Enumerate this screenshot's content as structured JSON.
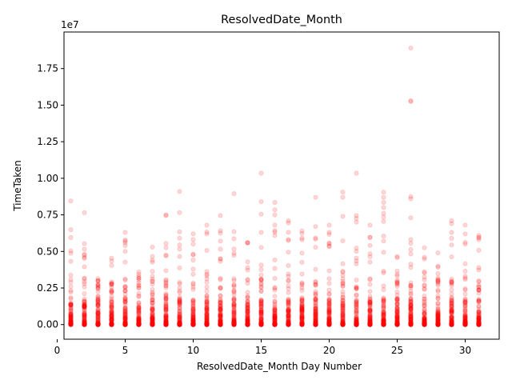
{
  "chart_data": {
    "type": "scatter",
    "title": "ResolvedDate_Month",
    "xlabel": "ResolvedDate_Month Day Number",
    "ylabel": "TimeTaken",
    "y_offset_text": "1e7",
    "xlim": [
      0.5,
      32.5
    ],
    "ylim": [
      -1000000,
      20000000
    ],
    "xticks": [
      0,
      5,
      10,
      15,
      20,
      25,
      30
    ],
    "xtick_labels": [
      "0",
      "5",
      "10",
      "15",
      "20",
      "25",
      "30"
    ],
    "yticks": [
      0,
      2500000,
      5000000,
      7500000,
      10000000,
      12500000,
      15000000,
      17500000
    ],
    "ytick_labels": [
      "0.00",
      "0.25",
      "0.50",
      "0.75",
      "1.00",
      "1.25",
      "1.50",
      "1.75"
    ],
    "marker_color": "#ff0000",
    "marker_alpha": 0.15,
    "grid": false,
    "legend": "none",
    "day_max_values": {
      "1": 8450000,
      "2": 7650000,
      "3": 3000000,
      "4": 4650000,
      "5": 6300000,
      "6": 3650000,
      "7": 5300000,
      "8": 7500000,
      "9": 9100000,
      "10": 6200000,
      "11": 6800000,
      "12": 7450000,
      "13": 8950000,
      "14": 5600000,
      "15": 10350000,
      "16": 8350000,
      "17": 7100000,
      "18": 6400000,
      "19": 8700000,
      "20": 6800000,
      "21": 9050000,
      "22": 10350000,
      "23": 6800000,
      "24": 9050000,
      "25": 4650000,
      "26": 18900000,
      "27": 5250000,
      "28": 4900000,
      "29": 7100000,
      "30": 6800000,
      "31": 6100000
    },
    "points": [
      {
        "x": 1,
        "y": 8450000
      },
      {
        "x": 1,
        "y": 5950000
      },
      {
        "x": 2,
        "y": 7650000
      },
      {
        "x": 2,
        "y": 4800000
      },
      {
        "x": 5,
        "y": 6300000
      },
      {
        "x": 5,
        "y": 5400000
      },
      {
        "x": 7,
        "y": 5300000
      },
      {
        "x": 8,
        "y": 7500000
      },
      {
        "x": 8,
        "y": 7450000
      },
      {
        "x": 8,
        "y": 5250000
      },
      {
        "x": 9,
        "y": 9100000
      },
      {
        "x": 9,
        "y": 7650000
      },
      {
        "x": 9,
        "y": 5450000
      },
      {
        "x": 10,
        "y": 6200000
      },
      {
        "x": 10,
        "y": 5500000
      },
      {
        "x": 11,
        "y": 6800000
      },
      {
        "x": 11,
        "y": 6200000
      },
      {
        "x": 12,
        "y": 7450000
      },
      {
        "x": 12,
        "y": 6250000
      },
      {
        "x": 13,
        "y": 8950000
      },
      {
        "x": 13,
        "y": 6350000
      },
      {
        "x": 14,
        "y": 5600000
      },
      {
        "x": 15,
        "y": 10350000
      },
      {
        "x": 15,
        "y": 8400000
      },
      {
        "x": 15,
        "y": 7550000
      },
      {
        "x": 15,
        "y": 6300000
      },
      {
        "x": 16,
        "y": 8350000
      },
      {
        "x": 16,
        "y": 7850000
      },
      {
        "x": 16,
        "y": 7500000
      },
      {
        "x": 16,
        "y": 6800000
      },
      {
        "x": 17,
        "y": 7100000
      },
      {
        "x": 17,
        "y": 6950000
      },
      {
        "x": 17,
        "y": 6300000
      },
      {
        "x": 18,
        "y": 6400000
      },
      {
        "x": 18,
        "y": 5800000
      },
      {
        "x": 19,
        "y": 8700000
      },
      {
        "x": 19,
        "y": 6700000
      },
      {
        "x": 20,
        "y": 6800000
      },
      {
        "x": 20,
        "y": 6300000
      },
      {
        "x": 21,
        "y": 9050000
      },
      {
        "x": 21,
        "y": 8700000
      },
      {
        "x": 21,
        "y": 7400000
      },
      {
        "x": 22,
        "y": 10350000
      },
      {
        "x": 22,
        "y": 7450000
      },
      {
        "x": 22,
        "y": 7250000
      },
      {
        "x": 22,
        "y": 7000000
      },
      {
        "x": 23,
        "y": 6800000
      },
      {
        "x": 23,
        "y": 5950000
      },
      {
        "x": 24,
        "y": 9050000
      },
      {
        "x": 24,
        "y": 8700000
      },
      {
        "x": 24,
        "y": 8350000
      },
      {
        "x": 24,
        "y": 8000000
      },
      {
        "x": 24,
        "y": 7600000
      },
      {
        "x": 24,
        "y": 7350000
      },
      {
        "x": 24,
        "y": 7050000
      },
      {
        "x": 25,
        "y": 4650000
      },
      {
        "x": 26,
        "y": 18900000
      },
      {
        "x": 26,
        "y": 15300000
      },
      {
        "x": 26,
        "y": 15250000
      },
      {
        "x": 26,
        "y": 8750000
      },
      {
        "x": 26,
        "y": 8600000
      },
      {
        "x": 26,
        "y": 7300000
      },
      {
        "x": 26,
        "y": 5550000
      },
      {
        "x": 27,
        "y": 5250000
      },
      {
        "x": 28,
        "y": 4900000
      },
      {
        "x": 29,
        "y": 7100000
      },
      {
        "x": 29,
        "y": 6900000
      },
      {
        "x": 29,
        "y": 6300000
      },
      {
        "x": 30,
        "y": 6800000
      },
      {
        "x": 31,
        "y": 6100000
      },
      {
        "x": 31,
        "y": 5800000
      }
    ]
  }
}
